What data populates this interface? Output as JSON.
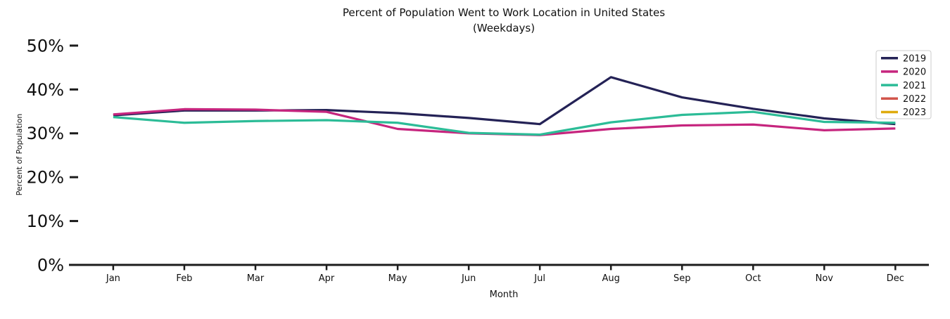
{
  "figure": {
    "background": "#ffffff",
    "axis_color": "#1c1c1c"
  },
  "chart_data": {
    "type": "line",
    "title": "Percent of Population Went to Work Location in United States",
    "subtitle": "(Weekdays)",
    "xlabel": "Month",
    "ylabel": "Percent of Population",
    "x": [
      "Jan",
      "Feb",
      "Mar",
      "Apr",
      "May",
      "Jun",
      "Jul",
      "Aug",
      "Sep",
      "Oct",
      "Nov",
      "Dec"
    ],
    "ytick_labels": [
      "0%",
      "10%",
      "20%",
      "30%",
      "40%",
      "50%"
    ],
    "ytick_values": [
      0,
      10,
      20,
      30,
      40,
      50
    ],
    "ylim": [
      0,
      50
    ],
    "grid": false,
    "legend_position": "upper right",
    "series": [
      {
        "name": "2019",
        "color": "#242256",
        "values": [
          34.1,
          35.2,
          35.2,
          35.3,
          34.6,
          33.5,
          32.1,
          42.8,
          38.2,
          35.6,
          33.4,
          32.1
        ]
      },
      {
        "name": "2020",
        "color": "#c6257e",
        "values": [
          34.3,
          35.5,
          35.4,
          34.9,
          31.0,
          30.0,
          29.6,
          31.0,
          31.8,
          32.0,
          30.7,
          31.1
        ]
      },
      {
        "name": "2021",
        "color": "#2cbc97",
        "values": [
          33.7,
          32.4,
          32.8,
          33.0,
          32.4,
          30.1,
          29.7,
          32.5,
          34.2,
          34.9,
          32.6,
          32.4
        ]
      },
      {
        "name": "2022",
        "color": "#d2554b",
        "values": []
      },
      {
        "name": "2023",
        "color": "#dfab0e",
        "values": []
      }
    ]
  }
}
